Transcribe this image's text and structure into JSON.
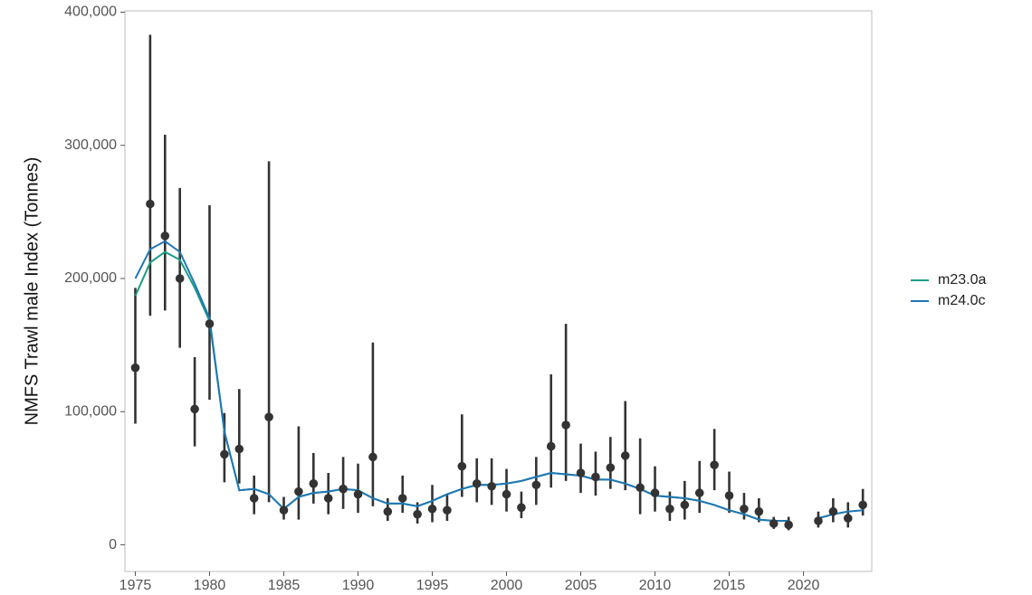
{
  "chart_data": {
    "type": "line",
    "ylabel": "NMFS Trawl male Index (Tonnes)",
    "x": [
      1975,
      1976,
      1977,
      1978,
      1979,
      1980,
      1981,
      1982,
      1983,
      1984,
      1985,
      1986,
      1987,
      1988,
      1989,
      1990,
      1991,
      1992,
      1993,
      1994,
      1995,
      1996,
      1997,
      1998,
      1999,
      2000,
      2001,
      2002,
      2003,
      2004,
      2005,
      2006,
      2007,
      2008,
      2009,
      2010,
      2011,
      2012,
      2013,
      2014,
      2015,
      2016,
      2017,
      2018,
      2019,
      2020,
      2021,
      2022,
      2023,
      2024
    ],
    "xlim": [
      1974.3,
      2024.6
    ],
    "xticks": [
      1975,
      1980,
      1985,
      1990,
      1995,
      2000,
      2005,
      2010,
      2015,
      2020
    ],
    "ylim": [
      -20000,
      401000
    ],
    "yticks": [
      0,
      {
        "value": 100000,
        "label": "100,000"
      },
      {
        "value": 200000,
        "label": "200,000"
      },
      {
        "value": 300000,
        "label": "300,000"
      },
      {
        "value": 400000,
        "label": "400,000"
      }
    ],
    "observed": {
      "color": "#333333",
      "values": [
        133000,
        256000,
        232000,
        200000,
        102000,
        166000,
        68000,
        72000,
        35000,
        96000,
        26000,
        40000,
        46000,
        35000,
        42000,
        38000,
        66000,
        25000,
        35000,
        23000,
        27000,
        26000,
        59000,
        46000,
        44000,
        38000,
        28000,
        45000,
        74000,
        90000,
        54000,
        51000,
        58000,
        67000,
        43000,
        39000,
        27000,
        30000,
        39000,
        60000,
        37000,
        27000,
        25000,
        16000,
        15000,
        null,
        18000,
        25000,
        20000,
        30000
      ],
      "lower": [
        91000,
        172000,
        176000,
        148000,
        74000,
        109000,
        47000,
        46000,
        23000,
        32000,
        19000,
        19000,
        31000,
        23000,
        27000,
        24000,
        29000,
        18000,
        24000,
        16000,
        17000,
        18000,
        36000,
        32000,
        30000,
        25000,
        20000,
        30000,
        43000,
        48000,
        39000,
        37000,
        42000,
        41000,
        23000,
        25000,
        18000,
        19000,
        24000,
        41000,
        24000,
        19000,
        17000,
        12000,
        11000,
        null,
        13000,
        17000,
        13000,
        22000
      ],
      "upper": [
        193000,
        383000,
        308000,
        268000,
        141000,
        255000,
        99000,
        117000,
        52000,
        288000,
        36000,
        89000,
        69000,
        54000,
        66000,
        61000,
        152000,
        35000,
        52000,
        32000,
        45000,
        38000,
        98000,
        65000,
        65000,
        57000,
        40000,
        66000,
        128000,
        166000,
        76000,
        70000,
        81000,
        108000,
        80000,
        59000,
        40000,
        48000,
        63000,
        87000,
        55000,
        39000,
        35000,
        21000,
        21000,
        null,
        25000,
        35000,
        32000,
        42000
      ]
    },
    "series": [
      {
        "name": "m23.0a",
        "color": "#1b9e86",
        "values": [
          187000,
          212000,
          220000,
          214000,
          193000,
          168000,
          85000,
          41000,
          42000,
          38000,
          27000,
          36000,
          39000,
          40000,
          42000,
          41000,
          35000,
          31000,
          31000,
          29000,
          33000,
          38000,
          42000,
          45000,
          45000,
          46000,
          48000,
          51000,
          54000,
          53000,
          52000,
          49000,
          49000,
          46000,
          42000,
          37000,
          36000,
          35000,
          33000,
          30000,
          26000,
          23000,
          19000,
          18000,
          18000,
          null,
          20000,
          23000,
          25000,
          null
        ]
      },
      {
        "name": "m24.0c",
        "color": "#1f77b4",
        "values": [
          200000,
          222000,
          228000,
          220000,
          196000,
          170000,
          85000,
          41000,
          42000,
          38000,
          27000,
          36000,
          39000,
          40000,
          42000,
          41000,
          35000,
          31000,
          31000,
          29000,
          33000,
          38000,
          42000,
          45000,
          45000,
          46000,
          48000,
          51000,
          54000,
          53000,
          52000,
          49000,
          49000,
          46000,
          42000,
          37000,
          36000,
          35000,
          33000,
          30000,
          26000,
          23000,
          19000,
          18000,
          18000,
          null,
          20000,
          23000,
          25000,
          26000
        ]
      }
    ]
  }
}
